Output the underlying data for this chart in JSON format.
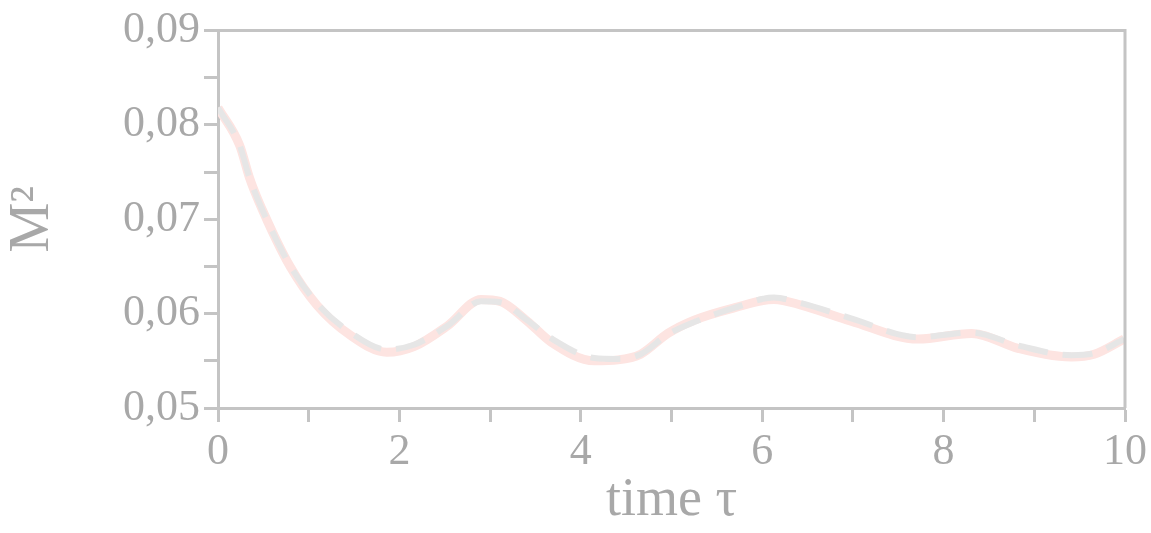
{
  "chart_data": {
    "type": "line",
    "xlabel": "time τ",
    "ylabel": "M²",
    "grid": false,
    "legend": false,
    "marker": "none",
    "xlim": [
      0,
      10
    ],
    "xticks": [
      0,
      {
        "value": 1,
        "label": null
      },
      2,
      {
        "value": 3,
        "label": null
      },
      4,
      {
        "value": 5,
        "label": null
      },
      6,
      {
        "value": 7,
        "label": null
      },
      8,
      {
        "value": 9,
        "label": null
      },
      10
    ],
    "ylim": [
      0.05,
      0.09
    ],
    "yticks": [
      {
        "value": 0.05,
        "label": "0,05"
      },
      {
        "value": 0.055,
        "label": null
      },
      {
        "value": 0.06,
        "label": "0,06"
      },
      {
        "value": 0.065,
        "label": null
      },
      {
        "value": 0.07,
        "label": "0,07"
      },
      {
        "value": 0.075,
        "label": null
      },
      {
        "value": 0.08,
        "label": "0,08"
      },
      {
        "value": 0.085,
        "label": null
      },
      {
        "value": 0.09,
        "label": "0,09"
      }
    ],
    "series": [
      {
        "color": "#fde4e1",
        "line_style": "solid",
        "x": [
          0,
          0.24,
          0.35,
          0.54,
          0.8,
          1.09,
          1.46,
          1.86,
          2.16,
          2.53,
          2.9,
          3.11,
          3.41,
          3.67,
          4.15,
          4.41,
          4.66,
          4.96,
          5.25,
          5.69,
          6.13,
          6.43,
          6.98,
          7.72,
          8.31,
          8.83,
          9.41,
          9.66,
          9.99
        ],
        "values": [
          0.0818,
          0.0778,
          0.0743,
          0.0699,
          0.0649,
          0.0609,
          0.0577,
          0.0559,
          0.0565,
          0.0587,
          0.0615,
          0.0613,
          0.0592,
          0.057,
          0.055,
          0.0551,
          0.0557,
          0.0579,
          0.0593,
          0.0606,
          0.0615,
          0.0609,
          0.0592,
          0.0573,
          0.0579,
          0.0563,
          0.0554,
          0.0557,
          0.0573
        ]
      },
      {
        "color": "#e6e6e6",
        "line_style": "dashed",
        "x": [
          0,
          0.24,
          0.35,
          0.54,
          0.8,
          1.09,
          1.46,
          1.86,
          2.16,
          2.53,
          2.9,
          3.11,
          3.41,
          3.67,
          4.15,
          4.41,
          4.66,
          4.96,
          5.25,
          5.69,
          6.13,
          6.43,
          6.98,
          7.72,
          8.31,
          8.83,
          9.41,
          9.66,
          9.99
        ],
        "values": [
          0.0818,
          0.0778,
          0.0743,
          0.0699,
          0.065,
          0.0611,
          0.058,
          0.0562,
          0.0567,
          0.0587,
          0.0613,
          0.0612,
          0.0593,
          0.0574,
          0.0553,
          0.0552,
          0.0557,
          0.0578,
          0.0591,
          0.0606,
          0.0617,
          0.0611,
          0.0595,
          0.0575,
          0.058,
          0.0566,
          0.0556,
          0.0558,
          0.0573
        ]
      }
    ]
  }
}
